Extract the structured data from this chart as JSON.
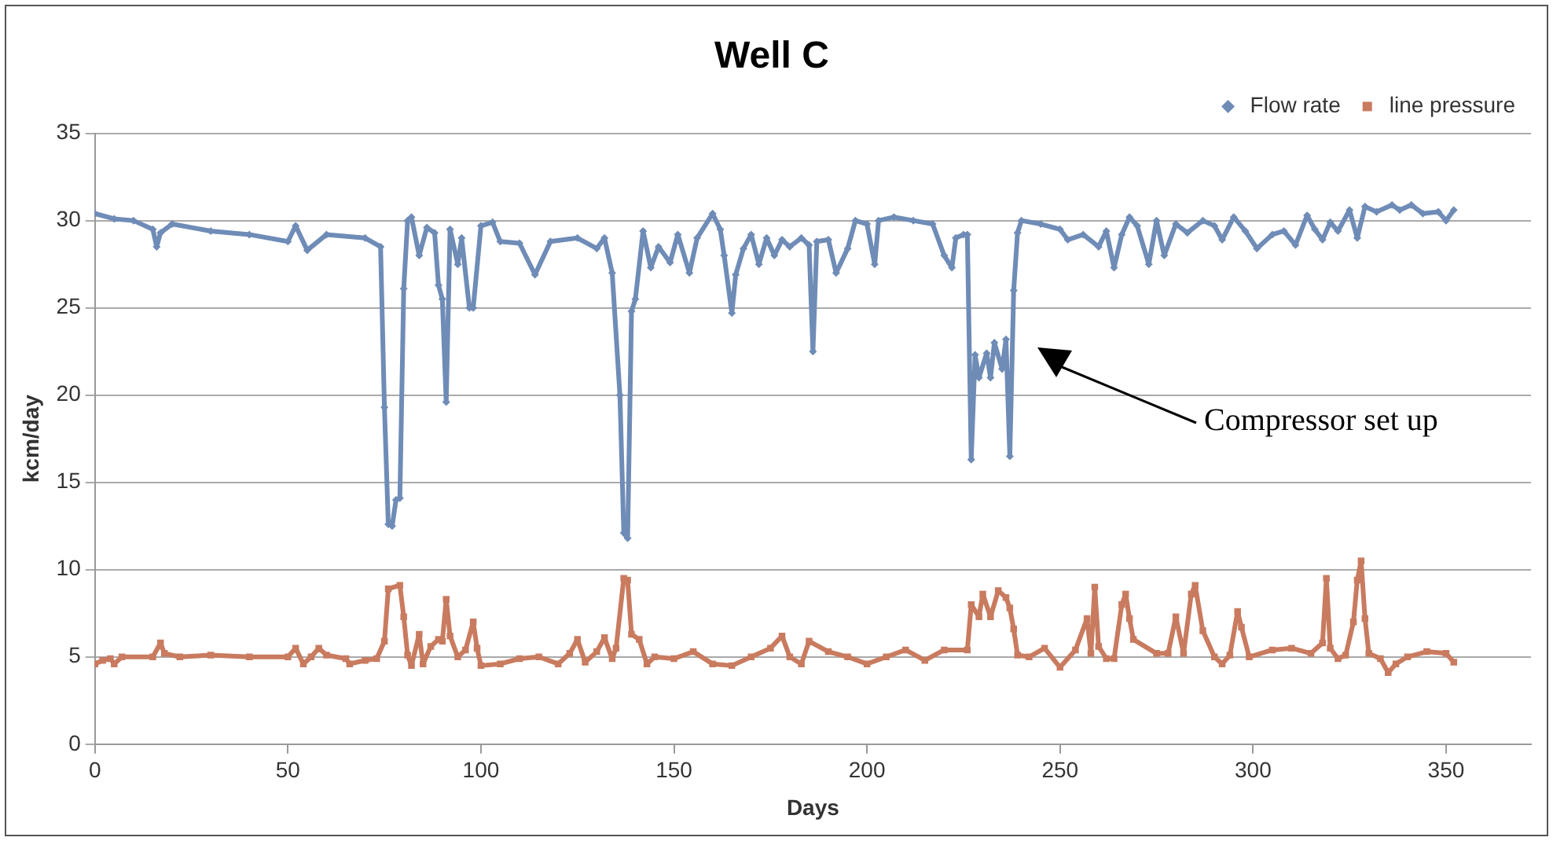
{
  "chart_data": {
    "type": "line",
    "title": "Well C",
    "xlabel": "Days",
    "ylabel": "kcm/day",
    "xlim": [
      0,
      372
    ],
    "xticks": [
      0,
      50,
      100,
      150,
      200,
      250,
      300,
      350
    ],
    "ylim": [
      0,
      35
    ],
    "yticks": [
      0,
      5,
      10,
      15,
      20,
      25,
      30,
      35
    ],
    "grid": "y",
    "legend": "top right",
    "line_style": "solid",
    "annotations": [
      "Compressor set up"
    ],
    "series": [
      {
        "name": "Flow rate",
        "color": "#6f8cb7",
        "marker": "diamond",
        "x": [
          0,
          5,
          10,
          15,
          16,
          17,
          20,
          30,
          40,
          50,
          52,
          55,
          60,
          70,
          74,
          75,
          76,
          77,
          78,
          79,
          80,
          81,
          82,
          84,
          86,
          88,
          89,
          90,
          91,
          92,
          94,
          95,
          97,
          98,
          100,
          103,
          105,
          110,
          114,
          118,
          125,
          130,
          132,
          134,
          136,
          137,
          138,
          139,
          140,
          142,
          144,
          146,
          149,
          151,
          154,
          156,
          160,
          162,
          163,
          165,
          166,
          168,
          170,
          172,
          174,
          176,
          178,
          180,
          183,
          185,
          186,
          187,
          190,
          192,
          195,
          197,
          200,
          202,
          203,
          207,
          212,
          217,
          220,
          222,
          223,
          225,
          226,
          227,
          228,
          229,
          231,
          232,
          233,
          235,
          236,
          237,
          238,
          239,
          240,
          245,
          250,
          252,
          256,
          260,
          262,
          264,
          266,
          268,
          270,
          273,
          275,
          277,
          280,
          283,
          287,
          290,
          292,
          295,
          298,
          301,
          305,
          308,
          311,
          314,
          316,
          318,
          320,
          322,
          325,
          327,
          329,
          332,
          336,
          338,
          341,
          344,
          348,
          350,
          352
        ],
        "values": [
          30.4,
          30.1,
          30.0,
          29.5,
          28.5,
          29.3,
          29.8,
          29.4,
          29.2,
          28.8,
          29.7,
          28.3,
          29.2,
          29.0,
          28.5,
          19.3,
          12.6,
          12.5,
          14.0,
          14.1,
          26.1,
          30.0,
          30.2,
          28.0,
          29.6,
          29.3,
          26.3,
          25.5,
          19.6,
          29.5,
          27.5,
          29.0,
          25.0,
          25.0,
          29.7,
          29.9,
          28.8,
          28.7,
          26.9,
          28.8,
          29.0,
          28.4,
          29.0,
          27.0,
          20.0,
          12.1,
          11.8,
          24.8,
          25.5,
          29.4,
          27.3,
          28.5,
          27.6,
          29.2,
          27.0,
          29.0,
          30.4,
          29.5,
          28.0,
          24.7,
          26.9,
          28.4,
          29.2,
          27.5,
          29.0,
          28.0,
          28.9,
          28.5,
          29.0,
          28.6,
          22.5,
          28.8,
          28.9,
          27.0,
          28.4,
          30.0,
          29.8,
          27.5,
          30.0,
          30.2,
          30.0,
          29.8,
          28.0,
          27.3,
          29.0,
          29.2,
          29.2,
          16.3,
          22.3,
          21.0,
          22.4,
          21.0,
          23.0,
          21.5,
          23.2,
          16.5,
          26.0,
          29.3,
          30.0,
          29.8,
          29.5,
          28.9,
          29.2,
          28.5,
          29.4,
          27.3,
          29.2,
          30.2,
          29.7,
          27.5,
          30.0,
          28.0,
          29.8,
          29.3,
          30.0,
          29.7,
          28.9,
          30.2,
          29.4,
          28.4,
          29.2,
          29.4,
          28.6,
          30.3,
          29.5,
          28.9,
          29.9,
          29.4,
          30.6,
          29.0,
          30.8,
          30.5,
          30.9,
          30.6,
          30.9,
          30.4,
          30.5,
          30.0,
          30.6
        ]
      },
      {
        "name": "line pressure",
        "color": "#c97b5f",
        "marker": "square",
        "x": [
          0,
          2,
          4,
          5,
          7,
          15,
          17,
          18,
          22,
          30,
          40,
          50,
          52,
          54,
          56,
          58,
          60,
          65,
          66,
          70,
          73,
          75,
          76,
          79,
          80,
          81,
          82,
          84,
          85,
          87,
          89,
          90,
          91,
          92,
          94,
          96,
          98,
          99,
          100,
          105,
          110,
          115,
          120,
          123,
          125,
          127,
          130,
          132,
          134,
          135,
          137,
          138,
          139,
          141,
          143,
          145,
          150,
          155,
          160,
          165,
          170,
          175,
          178,
          180,
          183,
          185,
          190,
          195,
          200,
          205,
          210,
          215,
          220,
          226,
          227,
          229,
          230,
          232,
          234,
          236,
          237,
          238,
          239,
          242,
          246,
          250,
          254,
          257,
          258,
          259,
          260,
          262,
          264,
          266,
          267,
          268,
          269,
          275,
          278,
          280,
          282,
          284,
          285,
          287,
          290,
          292,
          294,
          296,
          297,
          299,
          305,
          310,
          315,
          318,
          319,
          320,
          322,
          324,
          326,
          327,
          328,
          329,
          330,
          333,
          335,
          337,
          340,
          345,
          350,
          352
        ],
        "values": [
          4.6,
          4.8,
          4.9,
          4.6,
          5.0,
          5.0,
          5.8,
          5.2,
          5.0,
          5.1,
          5.0,
          5.0,
          5.5,
          4.6,
          5.0,
          5.5,
          5.1,
          4.9,
          4.6,
          4.8,
          4.9,
          5.9,
          8.9,
          9.1,
          7.3,
          5.1,
          4.5,
          6.3,
          4.6,
          5.6,
          6.0,
          5.9,
          8.3,
          6.2,
          5.0,
          5.4,
          7.0,
          5.5,
          4.5,
          4.6,
          4.9,
          5.0,
          4.6,
          5.2,
          6.0,
          4.7,
          5.3,
          6.1,
          4.9,
          5.5,
          9.5,
          9.4,
          6.3,
          6.0,
          4.6,
          5.0,
          4.9,
          5.3,
          4.6,
          4.5,
          5.0,
          5.5,
          6.2,
          5.0,
          4.6,
          5.9,
          5.3,
          5.0,
          4.6,
          5.0,
          5.4,
          4.8,
          5.4,
          5.4,
          8.0,
          7.3,
          8.6,
          7.3,
          8.8,
          8.4,
          7.8,
          6.6,
          5.1,
          5.0,
          5.5,
          4.4,
          5.4,
          7.2,
          5.2,
          9.0,
          5.6,
          4.9,
          4.9,
          8.0,
          8.6,
          7.2,
          6.0,
          5.2,
          5.2,
          7.3,
          5.2,
          8.6,
          9.1,
          6.5,
          5.0,
          4.6,
          5.1,
          7.6,
          6.7,
          5.0,
          5.4,
          5.5,
          5.2,
          5.8,
          9.5,
          5.5,
          4.9,
          5.1,
          7.0,
          9.4,
          10.5,
          7.2,
          5.2,
          4.9,
          4.1,
          4.6,
          5.0,
          5.3,
          5.2,
          4.7
        ]
      }
    ]
  }
}
